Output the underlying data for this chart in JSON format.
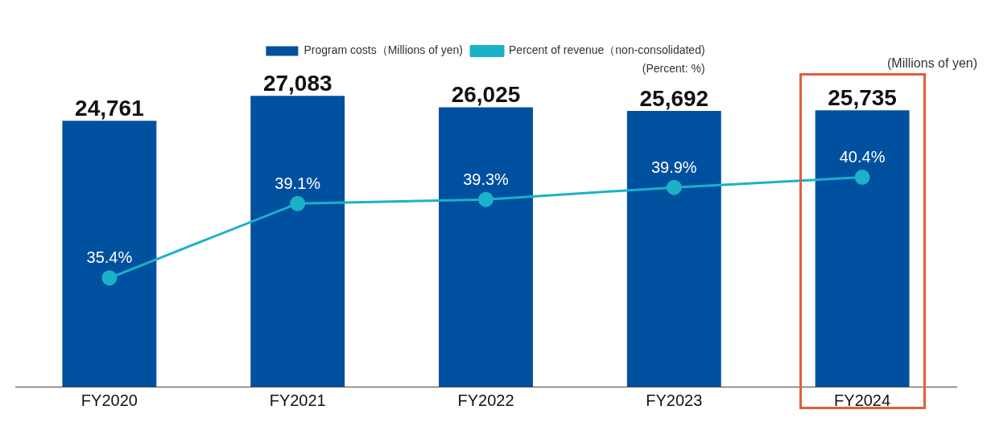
{
  "chart_data": {
    "type": "bar",
    "categories": [
      "FY2020",
      "FY2021",
      "FY2022",
      "FY2023",
      "FY2024"
    ],
    "series": [
      {
        "name": "Program costs（Millions of yen)",
        "color": "#0050a0",
        "values": [
          24761,
          27083,
          26025,
          25692,
          25735
        ],
        "value_labels": [
          "24,761",
          "27,083",
          "26,025",
          "25,692",
          "25,735"
        ]
      },
      {
        "name": "Percent of revenue（non-consolidated)",
        "type": "line",
        "axis": "y2",
        "color": "#1ab2c8",
        "values": [
          35.4,
          39.1,
          39.3,
          39.9,
          40.4
        ],
        "value_labels": [
          "35.4%",
          "39.1%",
          "39.3%",
          "39.9%",
          "40.4%"
        ]
      }
    ],
    "tick_labels": "x",
    "grid": false,
    "legend": "top",
    "marker": "circle",
    "line_style": "solid",
    "annotations": [
      "(Percent: %)",
      "(Millions of yen)"
    ]
  }
}
